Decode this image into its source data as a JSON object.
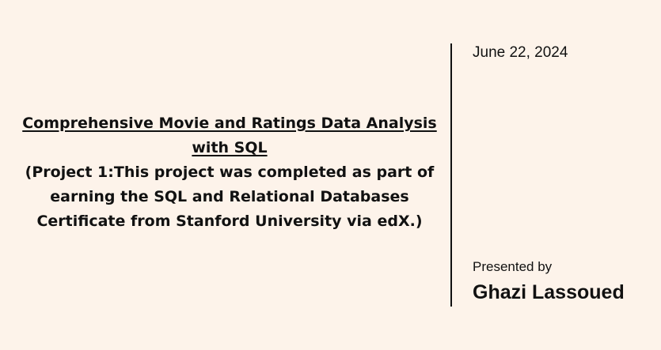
{
  "slide": {
    "title": "Comprehensive Movie and Ratings Data Analysis with SQL",
    "subtitle": "(Project 1:This project was completed as part of earning the SQL and Relational Databases Certificate from Stanford University via edX.)",
    "date": "June 22, 2024",
    "presented_by_label": "Presented by",
    "presenter_name": "Ghazi Lassoued"
  },
  "colors": {
    "background": "#fdf3ea",
    "text": "#111111",
    "divider": "#111111"
  }
}
